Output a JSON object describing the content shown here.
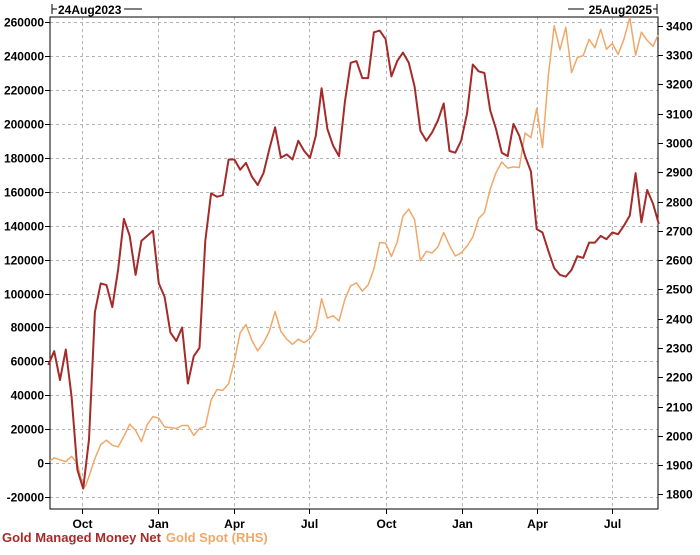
{
  "chart_data": {
    "type": "line",
    "start_date_label": "24Aug2023",
    "end_date_label": "25Aug2025",
    "x_tick_labels": [
      "Oct",
      "Jan",
      "Apr",
      "Jul",
      "Oct",
      "Jan",
      "Apr",
      "Jul"
    ],
    "x_tick_dates": [
      "2023-10-01",
      "2024-01-01",
      "2024-04-01",
      "2024-07-01",
      "2024-10-01",
      "2025-01-01",
      "2025-04-01",
      "2025-07-01"
    ],
    "x_range": [
      "2023-08-24",
      "2025-08-25"
    ],
    "left_axis": {
      "ylim": [
        -27000,
        263000
      ],
      "ticks": [
        -20000,
        0,
        20000,
        40000,
        60000,
        80000,
        100000,
        120000,
        140000,
        160000,
        180000,
        200000,
        220000,
        240000,
        260000
      ]
    },
    "right_axis": {
      "ylim": [
        1750,
        3430
      ],
      "ticks": [
        1800,
        1900,
        2000,
        2100,
        2200,
        2300,
        2400,
        2500,
        2600,
        2700,
        2800,
        2900,
        3000,
        3100,
        3200,
        3300,
        3400
      ]
    },
    "grid": true,
    "legend_placement": "bottom-left",
    "series": [
      {
        "name": "Gold Managed Money Net",
        "axis": "left",
        "color": "#a52a2a",
        "points": [
          [
            "2023-08-22",
            58000
          ],
          [
            "2023-08-29",
            66000
          ],
          [
            "2023-09-05",
            49000
          ],
          [
            "2023-09-12",
            67000
          ],
          [
            "2023-09-19",
            39000
          ],
          [
            "2023-09-26",
            -4000
          ],
          [
            "2023-10-03",
            -15000
          ],
          [
            "2023-10-10",
            14000
          ],
          [
            "2023-10-17",
            89000
          ],
          [
            "2023-10-24",
            106000
          ],
          [
            "2023-10-31",
            105000
          ],
          [
            "2023-11-07",
            92000
          ],
          [
            "2023-11-14",
            114000
          ],
          [
            "2023-11-21",
            144000
          ],
          [
            "2023-11-28",
            134000
          ],
          [
            "2023-12-05",
            111000
          ],
          [
            "2023-12-12",
            131000
          ],
          [
            "2023-12-19",
            134000
          ],
          [
            "2023-12-26",
            137000
          ],
          [
            "2024-01-02",
            106000
          ],
          [
            "2024-01-09",
            98000
          ],
          [
            "2024-01-16",
            77000
          ],
          [
            "2024-01-23",
            72000
          ],
          [
            "2024-01-30",
            80000
          ],
          [
            "2024-02-06",
            47000
          ],
          [
            "2024-02-13",
            63000
          ],
          [
            "2024-02-20",
            68000
          ],
          [
            "2024-02-27",
            131000
          ],
          [
            "2024-03-05",
            159000
          ],
          [
            "2024-03-12",
            157000
          ],
          [
            "2024-03-19",
            158000
          ],
          [
            "2024-03-26",
            179000
          ],
          [
            "2024-04-02",
            179000
          ],
          [
            "2024-04-09",
            173000
          ],
          [
            "2024-04-16",
            177000
          ],
          [
            "2024-04-23",
            169000
          ],
          [
            "2024-04-30",
            164000
          ],
          [
            "2024-05-07",
            171000
          ],
          [
            "2024-05-14",
            185000
          ],
          [
            "2024-05-21",
            198000
          ],
          [
            "2024-05-28",
            180000
          ],
          [
            "2024-06-04",
            182000
          ],
          [
            "2024-06-11",
            179000
          ],
          [
            "2024-06-18",
            190000
          ],
          [
            "2024-06-25",
            184000
          ],
          [
            "2024-07-02",
            180000
          ],
          [
            "2024-07-09",
            193000
          ],
          [
            "2024-07-16",
            221000
          ],
          [
            "2024-07-23",
            197000
          ],
          [
            "2024-07-30",
            187000
          ],
          [
            "2024-08-06",
            181000
          ],
          [
            "2024-08-13",
            213000
          ],
          [
            "2024-08-20",
            236000
          ],
          [
            "2024-08-27",
            237000
          ],
          [
            "2024-09-03",
            227000
          ],
          [
            "2024-09-10",
            227000
          ],
          [
            "2024-09-17",
            254000
          ],
          [
            "2024-09-24",
            255000
          ],
          [
            "2024-10-01",
            250000
          ],
          [
            "2024-10-08",
            228000
          ],
          [
            "2024-10-15",
            237000
          ],
          [
            "2024-10-22",
            242000
          ],
          [
            "2024-10-29",
            236000
          ],
          [
            "2024-11-05",
            222000
          ],
          [
            "2024-11-12",
            196000
          ],
          [
            "2024-11-19",
            190000
          ],
          [
            "2024-11-26",
            195000
          ],
          [
            "2024-12-03",
            202000
          ],
          [
            "2024-12-10",
            212000
          ],
          [
            "2024-12-17",
            184000
          ],
          [
            "2024-12-24",
            183000
          ],
          [
            "2024-12-31",
            190000
          ],
          [
            "2025-01-07",
            206000
          ],
          [
            "2025-01-14",
            235000
          ],
          [
            "2025-01-21",
            231000
          ],
          [
            "2025-01-28",
            230000
          ],
          [
            "2025-02-04",
            208000
          ],
          [
            "2025-02-11",
            197000
          ],
          [
            "2025-02-18",
            183000
          ],
          [
            "2025-02-25",
            181000
          ],
          [
            "2025-03-04",
            200000
          ],
          [
            "2025-03-11",
            193000
          ],
          [
            "2025-03-18",
            181000
          ],
          [
            "2025-03-25",
            172000
          ],
          [
            "2025-04-01",
            138000
          ],
          [
            "2025-04-08",
            136000
          ],
          [
            "2025-04-15",
            125000
          ],
          [
            "2025-04-22",
            115000
          ],
          [
            "2025-04-29",
            111000
          ],
          [
            "2025-05-06",
            110000
          ],
          [
            "2025-05-13",
            114000
          ],
          [
            "2025-05-20",
            122000
          ],
          [
            "2025-05-27",
            121000
          ],
          [
            "2025-06-03",
            130000
          ],
          [
            "2025-06-10",
            130000
          ],
          [
            "2025-06-17",
            134000
          ],
          [
            "2025-06-24",
            132000
          ],
          [
            "2025-07-01",
            136000
          ],
          [
            "2025-07-08",
            135000
          ],
          [
            "2025-07-15",
            140000
          ],
          [
            "2025-07-22",
            146000
          ],
          [
            "2025-07-29",
            171000
          ],
          [
            "2025-08-05",
            142000
          ],
          [
            "2025-08-12",
            161000
          ],
          [
            "2025-08-19",
            153000
          ],
          [
            "2025-08-26",
            141000
          ]
        ]
      },
      {
        "name": "Gold Spot (RHS)",
        "axis": "right",
        "color": "#f0a868",
        "points": [
          [
            "2023-08-24",
            1915
          ],
          [
            "2023-08-29",
            1925
          ],
          [
            "2023-09-05",
            1918
          ],
          [
            "2023-09-12",
            1912
          ],
          [
            "2023-09-19",
            1930
          ],
          [
            "2023-09-26",
            1905
          ],
          [
            "2023-10-03",
            1822
          ],
          [
            "2023-10-06",
            1830
          ],
          [
            "2023-10-10",
            1862
          ],
          [
            "2023-10-17",
            1922
          ],
          [
            "2023-10-24",
            1970
          ],
          [
            "2023-10-31",
            1985
          ],
          [
            "2023-11-07",
            1968
          ],
          [
            "2023-11-14",
            1962
          ],
          [
            "2023-11-21",
            1998
          ],
          [
            "2023-11-28",
            2040
          ],
          [
            "2023-12-05",
            2018
          ],
          [
            "2023-12-12",
            1980
          ],
          [
            "2023-12-19",
            2038
          ],
          [
            "2023-12-26",
            2066
          ],
          [
            "2024-01-02",
            2060
          ],
          [
            "2024-01-09",
            2030
          ],
          [
            "2024-01-16",
            2028
          ],
          [
            "2024-01-23",
            2025
          ],
          [
            "2024-01-30",
            2035
          ],
          [
            "2024-02-06",
            2035
          ],
          [
            "2024-02-13",
            2001
          ],
          [
            "2024-02-20",
            2025
          ],
          [
            "2024-02-27",
            2032
          ],
          [
            "2024-03-05",
            2122
          ],
          [
            "2024-03-12",
            2158
          ],
          [
            "2024-03-19",
            2155
          ],
          [
            "2024-03-26",
            2178
          ],
          [
            "2024-04-02",
            2256
          ],
          [
            "2024-04-09",
            2352
          ],
          [
            "2024-04-16",
            2380
          ],
          [
            "2024-04-23",
            2326
          ],
          [
            "2024-04-30",
            2290
          ],
          [
            "2024-05-07",
            2318
          ],
          [
            "2024-05-14",
            2356
          ],
          [
            "2024-05-21",
            2424
          ],
          [
            "2024-05-28",
            2356
          ],
          [
            "2024-06-04",
            2330
          ],
          [
            "2024-06-11",
            2312
          ],
          [
            "2024-06-18",
            2330
          ],
          [
            "2024-06-25",
            2318
          ],
          [
            "2024-07-02",
            2332
          ],
          [
            "2024-07-09",
            2362
          ],
          [
            "2024-07-16",
            2468
          ],
          [
            "2024-07-23",
            2402
          ],
          [
            "2024-07-30",
            2410
          ],
          [
            "2024-08-06",
            2392
          ],
          [
            "2024-08-13",
            2466
          ],
          [
            "2024-08-20",
            2512
          ],
          [
            "2024-08-27",
            2522
          ],
          [
            "2024-09-03",
            2494
          ],
          [
            "2024-09-10",
            2515
          ],
          [
            "2024-09-17",
            2570
          ],
          [
            "2024-09-24",
            2660
          ],
          [
            "2024-10-01",
            2658
          ],
          [
            "2024-10-08",
            2612
          ],
          [
            "2024-10-15",
            2662
          ],
          [
            "2024-10-22",
            2750
          ],
          [
            "2024-10-29",
            2774
          ],
          [
            "2024-11-05",
            2738
          ],
          [
            "2024-11-12",
            2598
          ],
          [
            "2024-11-19",
            2630
          ],
          [
            "2024-11-26",
            2624
          ],
          [
            "2024-12-03",
            2645
          ],
          [
            "2024-12-10",
            2694
          ],
          [
            "2024-12-17",
            2650
          ],
          [
            "2024-12-24",
            2614
          ],
          [
            "2024-12-31",
            2624
          ],
          [
            "2025-01-07",
            2648
          ],
          [
            "2025-01-14",
            2678
          ],
          [
            "2025-01-21",
            2742
          ],
          [
            "2025-01-28",
            2762
          ],
          [
            "2025-02-04",
            2842
          ],
          [
            "2025-02-11",
            2898
          ],
          [
            "2025-02-18",
            2935
          ],
          [
            "2025-02-25",
            2914
          ],
          [
            "2025-03-04",
            2918
          ],
          [
            "2025-03-11",
            2916
          ],
          [
            "2025-03-18",
            3034
          ],
          [
            "2025-03-25",
            3018
          ],
          [
            "2025-04-01",
            3118
          ],
          [
            "2025-04-08",
            2984
          ],
          [
            "2025-04-15",
            3232
          ],
          [
            "2025-04-22",
            3400
          ],
          [
            "2025-04-29",
            3318
          ],
          [
            "2025-05-06",
            3395
          ],
          [
            "2025-05-13",
            3240
          ],
          [
            "2025-05-20",
            3292
          ],
          [
            "2025-05-27",
            3298
          ],
          [
            "2025-06-03",
            3354
          ],
          [
            "2025-06-10",
            3325
          ],
          [
            "2025-06-17",
            3388
          ],
          [
            "2025-06-24",
            3320
          ],
          [
            "2025-07-01",
            3340
          ],
          [
            "2025-07-08",
            3302
          ],
          [
            "2025-07-15",
            3354
          ],
          [
            "2025-07-22",
            3428
          ],
          [
            "2025-07-29",
            3300
          ],
          [
            "2025-08-05",
            3378
          ],
          [
            "2025-08-12",
            3350
          ],
          [
            "2025-08-19",
            3330
          ],
          [
            "2025-08-25",
            3368
          ]
        ]
      }
    ]
  }
}
